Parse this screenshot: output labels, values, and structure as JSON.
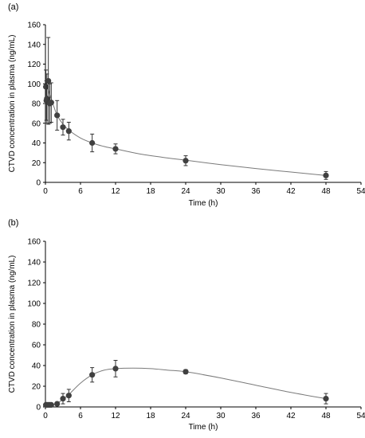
{
  "chart_data": [
    {
      "type": "scatter",
      "panel": "(a)",
      "xlabel": "Time (h)",
      "ylabel": "CTVD concentration in plasma (ng/mL)",
      "xlim": [
        0,
        54
      ],
      "ylim": [
        0,
        160
      ],
      "xticks": [
        0,
        6,
        12,
        18,
        24,
        30,
        36,
        42,
        48,
        54
      ],
      "yticks": [
        0,
        20,
        40,
        60,
        80,
        100,
        120,
        140,
        160
      ],
      "grid": false,
      "marker_color": "#404040",
      "line_color": "#7a7a7a",
      "points": [
        {
          "x": 0.08,
          "y": 97,
          "err": 17
        },
        {
          "x": 0.17,
          "y": 83,
          "err": 20
        },
        {
          "x": 0.25,
          "y": 85,
          "err": 25
        },
        {
          "x": 0.5,
          "y": 103,
          "err": 44
        },
        {
          "x": 0.75,
          "y": 80,
          "err": 20
        },
        {
          "x": 1,
          "y": 81,
          "err": 20
        },
        {
          "x": 2,
          "y": 68,
          "err": 15
        },
        {
          "x": 3,
          "y": 56,
          "err": 8
        },
        {
          "x": 4,
          "y": 52,
          "err": 9
        },
        {
          "x": 8,
          "y": 40,
          "err": 9
        },
        {
          "x": 12,
          "y": 34,
          "err": 5
        },
        {
          "x": 24,
          "y": 22,
          "err": 5
        },
        {
          "x": 48,
          "y": 7,
          "err": 4
        }
      ],
      "curve": [
        [
          0.05,
          95
        ],
        [
          0.3,
          96
        ],
        [
          0.6,
          92
        ],
        [
          1,
          84
        ],
        [
          1.5,
          76
        ],
        [
          2,
          68
        ],
        [
          3,
          59
        ],
        [
          4,
          53
        ],
        [
          6,
          45
        ],
        [
          8,
          40
        ],
        [
          10,
          36.5
        ],
        [
          12,
          34
        ],
        [
          16,
          29
        ],
        [
          20,
          25.5
        ],
        [
          24,
          22.5
        ],
        [
          30,
          18
        ],
        [
          36,
          14
        ],
        [
          42,
          10.5
        ],
        [
          48,
          7
        ]
      ]
    },
    {
      "type": "scatter",
      "panel": "(b)",
      "xlabel": "Time (h)",
      "ylabel": "CTVD concentration in plasma (ng/mL)",
      "xlim": [
        0,
        54
      ],
      "ylim": [
        0,
        160
      ],
      "xticks": [
        0,
        6,
        12,
        18,
        24,
        30,
        36,
        42,
        48,
        54
      ],
      "yticks": [
        0,
        20,
        40,
        60,
        80,
        100,
        120,
        140,
        160
      ],
      "grid": false,
      "marker_color": "#404040",
      "line_color": "#7a7a7a",
      "points": [
        {
          "x": 0.08,
          "y": 2,
          "err": 0
        },
        {
          "x": 0.25,
          "y": 2,
          "err": 0
        },
        {
          "x": 0.5,
          "y": 2,
          "err": 0
        },
        {
          "x": 0.75,
          "y": 2,
          "err": 0
        },
        {
          "x": 1,
          "y": 2,
          "err": 0
        },
        {
          "x": 2,
          "y": 3,
          "err": 0
        },
        {
          "x": 3,
          "y": 8,
          "err": 5
        },
        {
          "x": 4,
          "y": 11,
          "err": 6
        },
        {
          "x": 8,
          "y": 31,
          "err": 7
        },
        {
          "x": 12,
          "y": 37,
          "err": 8
        },
        {
          "x": 24,
          "y": 34,
          "err": 2
        },
        {
          "x": 48,
          "y": 8,
          "err": 5
        }
      ],
      "curve": [
        [
          0,
          2
        ],
        [
          1,
          2.2
        ],
        [
          2,
          3.5
        ],
        [
          3,
          7.5
        ],
        [
          4,
          12
        ],
        [
          6,
          23
        ],
        [
          8,
          31
        ],
        [
          10,
          35.5
        ],
        [
          12,
          37
        ],
        [
          15,
          37.5
        ],
        [
          18,
          37
        ],
        [
          21,
          35.5
        ],
        [
          24,
          34
        ],
        [
          30,
          28
        ],
        [
          36,
          21
        ],
        [
          42,
          14
        ],
        [
          48,
          8
        ]
      ]
    }
  ]
}
